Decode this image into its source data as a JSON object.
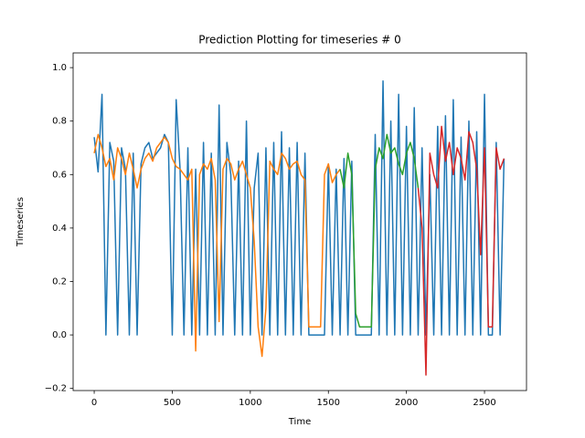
{
  "chart_data": {
    "type": "line",
    "title": "Prediction Plotting for timeseries # 0",
    "x_label": "Time",
    "y_label": "Timeseries",
    "xlim": [
      -135,
      2769
    ],
    "ylim": [
      -0.208,
      1.055
    ],
    "xticks": [
      0,
      500,
      1000,
      1500,
      2000,
      2500
    ],
    "yticks": [
      {
        "value": -0.2,
        "label": "−0.2"
      },
      {
        "value": 0.0,
        "label": "0.0"
      },
      0.2,
      0.4,
      0.6,
      0.8,
      {
        "value": 1.0,
        "label": "1.0"
      }
    ],
    "series": [
      {
        "color": "#1f77b4",
        "x": [
          0,
          25,
          50,
          75,
          100,
          125,
          150,
          175,
          200,
          225,
          250,
          275,
          300,
          325,
          350,
          375,
          400,
          425,
          450,
          475,
          500,
          525,
          550,
          575,
          600,
          625,
          650,
          675,
          700,
          725,
          750,
          775,
          800,
          825,
          850,
          875,
          900,
          925,
          950,
          975,
          1000,
          1025,
          1050,
          1075,
          1100,
          1125,
          1150,
          1175,
          1200,
          1225,
          1250,
          1275,
          1300,
          1325,
          1350,
          1375,
          1400,
          1425,
          1450,
          1475,
          1500,
          1525,
          1550,
          1575,
          1600,
          1625,
          1650,
          1675,
          1700,
          1725,
          1750,
          1775,
          1800,
          1825,
          1850,
          1875,
          1900,
          1925,
          1950,
          1975,
          2000,
          2025,
          2050,
          2075,
          2100,
          2125,
          2150,
          2175,
          2200,
          2225,
          2250,
          2275,
          2300,
          2325,
          2350,
          2375,
          2400,
          2425,
          2450,
          2475,
          2500,
          2525,
          2550,
          2575,
          2600,
          2625
        ],
        "values": [
          0.74,
          0.61,
          0.9,
          0.0,
          0.72,
          0.65,
          0.0,
          0.7,
          0.62,
          0.0,
          0.68,
          0.0,
          0.64,
          0.7,
          0.72,
          0.66,
          0.68,
          0.7,
          0.75,
          0.72,
          0.0,
          0.88,
          0.62,
          0.0,
          0.7,
          0.0,
          0.62,
          0.0,
          0.72,
          0.0,
          0.68,
          0.0,
          0.86,
          0.0,
          0.72,
          0.6,
          0.0,
          0.65,
          0.0,
          0.8,
          0.0,
          0.55,
          0.68,
          0.0,
          0.7,
          0.0,
          0.72,
          0.0,
          0.76,
          0.0,
          0.7,
          0.0,
          0.72,
          0.0,
          0.68,
          0.0,
          0.0,
          0.0,
          0.0,
          0.0,
          0.64,
          0.0,
          0.62,
          0.0,
          0.66,
          0.0,
          0.65,
          0.0,
          0.0,
          0.0,
          0.0,
          0.0,
          0.75,
          0.0,
          0.95,
          0.0,
          0.8,
          0.0,
          0.9,
          0.0,
          0.78,
          0.0,
          0.85,
          0.0,
          0.7,
          0.0,
          0.6,
          0.0,
          0.78,
          0.0,
          0.82,
          0.0,
          0.88,
          0.0,
          0.74,
          0.0,
          0.8,
          0.0,
          0.76,
          0.0,
          0.9,
          0.0,
          0.0,
          0.72,
          0.0,
          0.66
        ]
      },
      {
        "color": "#ff7f0e",
        "x": [
          0,
          25,
          50,
          75,
          100,
          125,
          150,
          175,
          200,
          225,
          250,
          275,
          300,
          325,
          350,
          375,
          400,
          425,
          450,
          475,
          500,
          525,
          550,
          575,
          600,
          625,
          650,
          675,
          700,
          725,
          750,
          775,
          800,
          825,
          850,
          875,
          900,
          925,
          950,
          975,
          1000,
          1025,
          1050,
          1075,
          1100,
          1125,
          1150,
          1175,
          1200,
          1225,
          1250,
          1275,
          1300,
          1325,
          1350,
          1375,
          1400,
          1425,
          1450,
          1475,
          1500,
          1525,
          1550,
          1575
        ],
        "values": [
          0.68,
          0.75,
          0.7,
          0.63,
          0.66,
          0.58,
          0.7,
          0.66,
          0.6,
          0.68,
          0.62,
          0.55,
          0.62,
          0.66,
          0.68,
          0.65,
          0.7,
          0.72,
          0.74,
          0.72,
          0.66,
          0.63,
          0.62,
          0.6,
          0.58,
          0.62,
          -0.06,
          0.6,
          0.64,
          0.62,
          0.66,
          0.58,
          0.05,
          0.62,
          0.66,
          0.64,
          0.58,
          0.62,
          0.65,
          0.6,
          0.55,
          0.35,
          0.03,
          -0.08,
          0.1,
          0.65,
          0.62,
          0.6,
          0.68,
          0.66,
          0.62,
          0.64,
          0.65,
          0.6,
          0.58,
          0.03,
          0.03,
          0.03,
          0.03,
          0.6,
          0.64,
          0.57,
          0.6,
          0.62
        ]
      },
      {
        "color": "#2ca02c",
        "x": [
          1575,
          1600,
          1625,
          1650,
          1675,
          1700,
          1725,
          1750,
          1775,
          1800,
          1825,
          1850,
          1875,
          1900,
          1925,
          1950,
          1975,
          2000,
          2025,
          2050,
          2075
        ],
        "values": [
          0.62,
          0.55,
          0.68,
          0.6,
          0.08,
          0.03,
          0.03,
          0.03,
          0.03,
          0.62,
          0.7,
          0.66,
          0.75,
          0.68,
          0.7,
          0.64,
          0.6,
          0.68,
          0.72,
          0.66,
          0.55
        ]
      },
      {
        "color": "#d62728",
        "x": [
          2075,
          2100,
          2125,
          2150,
          2175,
          2200,
          2225,
          2250,
          2275,
          2300,
          2325,
          2350,
          2375,
          2400,
          2425,
          2450,
          2475,
          2500,
          2525,
          2550,
          2575,
          2600,
          2625
        ],
        "values": [
          0.55,
          0.4,
          -0.15,
          0.68,
          0.6,
          0.55,
          0.78,
          0.65,
          0.72,
          0.6,
          0.7,
          0.66,
          0.58,
          0.76,
          0.72,
          0.62,
          0.3,
          0.7,
          0.03,
          0.03,
          0.7,
          0.62,
          0.66
        ]
      }
    ]
  }
}
